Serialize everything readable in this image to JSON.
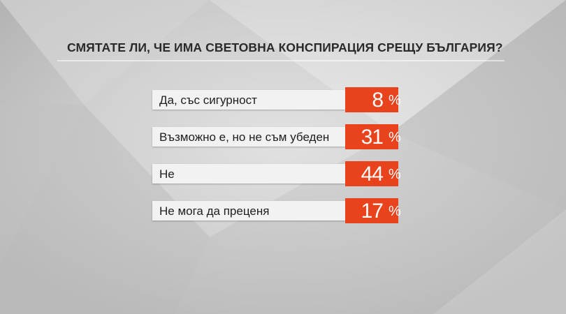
{
  "chart_data": {
    "type": "bar",
    "title": "СМЯТАТЕ ЛИ, ЧЕ ИМА СВЕТОВНА КОНСПИРАЦИЯ СРЕЩУ БЪЛГАРИЯ?",
    "categories": [
      "Да, със сигурност",
      "Възможно е, но не съм убеден",
      "Не",
      "Не мога да преценя"
    ],
    "values": [
      8,
      31,
      44,
      17
    ],
    "value_suffix": "%",
    "xlabel": "",
    "ylabel": "",
    "accent_color": "#e8431c",
    "label_box_color": "#f2f2f2",
    "background_color": "#c9c9c9"
  }
}
